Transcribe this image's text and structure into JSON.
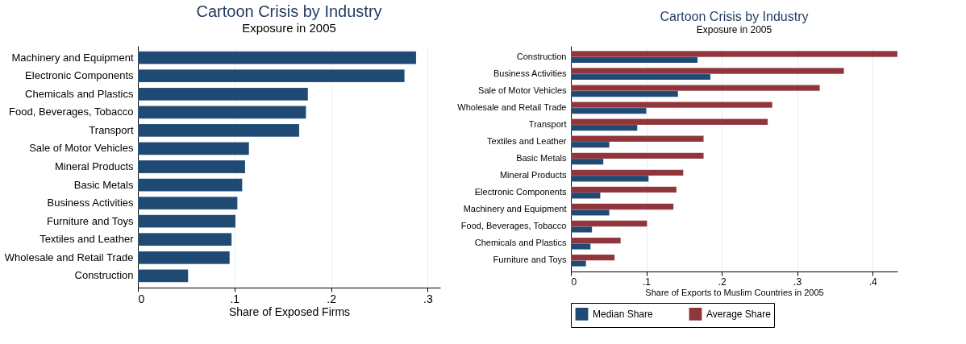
{
  "chart_data": [
    {
      "type": "bar",
      "orientation": "horizontal",
      "title": "Cartoon Crisis by Industry",
      "subtitle": "Exposure in 2005",
      "xlabel": "Share of Exposed Firms",
      "categories": [
        "Machinery and Equipment",
        "Electronic Components",
        "Chemicals and Plastics",
        "Food, Beverages, Tobacco",
        "Transport",
        "Sale of Motor Vehicles",
        "Mineral Products",
        "Basic Metals",
        "Business Activities",
        "Furniture and Toys",
        "Textiles and Leather",
        "Wholesale and Retail Trade",
        "Construction"
      ],
      "series": [
        {
          "color": "#1f4a73",
          "values": [
            0.288,
            0.276,
            0.176,
            0.174,
            0.167,
            0.115,
            0.111,
            0.108,
            0.103,
            0.101,
            0.097,
            0.095,
            0.052
          ]
        }
      ],
      "xlim": [
        0,
        0.313
      ],
      "xticks": [
        0,
        {
          "value": 0.1,
          "label": ".1"
        },
        {
          "value": 0.2,
          "label": ".2"
        },
        {
          "value": 0.3,
          "label": ".3"
        }
      ],
      "grid": "x",
      "legend": false
    },
    {
      "type": "bar",
      "orientation": "horizontal",
      "title": "Cartoon Crisis by Industry",
      "subtitle": "Exposure in 2005",
      "xlabel": "Share of Exports to Muslim Countries in 2005",
      "categories": [
        "Construction",
        "Business Activities",
        "Sale of Motor Vehicles",
        "Wholesale and Retail Trade",
        "Transport",
        "Textiles and Leather",
        "Basic Metals",
        "Mineral Products",
        "Electronic Components",
        "Machinery and Equipment",
        "Food, Beverages, Tobacco",
        "Chemicals and Plastics",
        "Furniture and Toys"
      ],
      "series": [
        {
          "name": "Median Share",
          "color": "#1f4a73",
          "values": [
            0.168,
            0.185,
            0.142,
            0.1,
            0.088,
            0.051,
            0.043,
            0.103,
            0.039,
            0.051,
            0.028,
            0.026,
            0.02
          ]
        },
        {
          "name": "Average Share",
          "color": "#90353b",
          "values": [
            0.433,
            0.362,
            0.33,
            0.267,
            0.261,
            0.176,
            0.176,
            0.149,
            0.14,
            0.136,
            0.101,
            0.066,
            0.058
          ]
        }
      ],
      "xlim": [
        0,
        0.433
      ],
      "xticks": [
        0,
        {
          "value": 0.1,
          "label": ".1"
        },
        {
          "value": 0.2,
          "label": ".2"
        },
        {
          "value": 0.3,
          "label": ".3"
        },
        {
          "value": 0.4,
          "label": ".4"
        }
      ],
      "grid": "x",
      "legend": "bottom"
    }
  ]
}
